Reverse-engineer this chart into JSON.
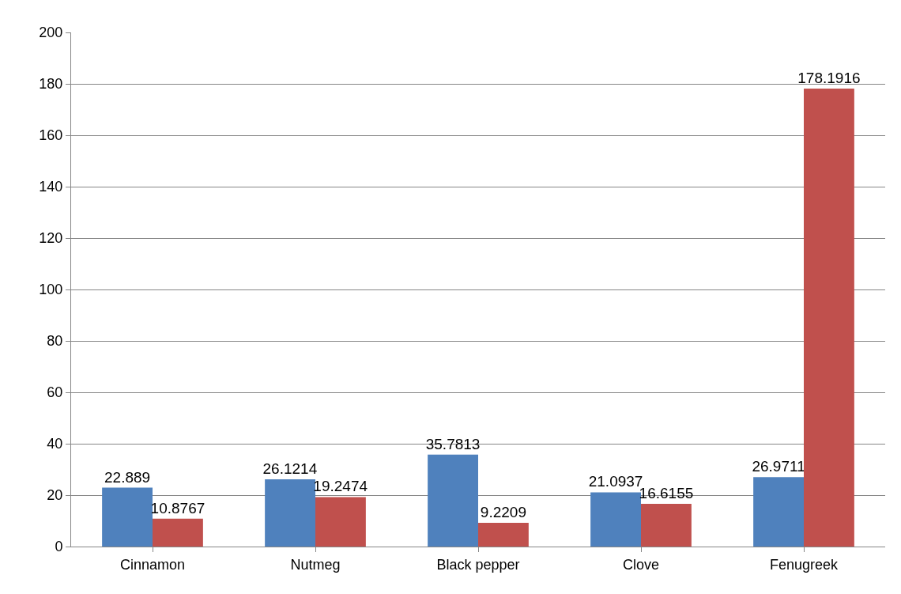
{
  "chart_data": {
    "type": "bar",
    "categories": [
      "Cinnamon",
      "Nutmeg",
      "Black pepper",
      "Clove",
      "Fenugreek"
    ],
    "series": [
      {
        "color": "#4f81bd",
        "values": [
          22.889,
          26.1214,
          35.7813,
          21.0937,
          26.9711
        ]
      },
      {
        "color": "#c0504d",
        "values": [
          10.8767,
          19.2474,
          9.2209,
          16.6155,
          178.1916
        ]
      }
    ],
    "ylim": [
      0,
      200
    ],
    "yticks": [
      0,
      20,
      40,
      60,
      80,
      100,
      120,
      140,
      160,
      180,
      200
    ],
    "grid": "y",
    "data_labels": true
  }
}
